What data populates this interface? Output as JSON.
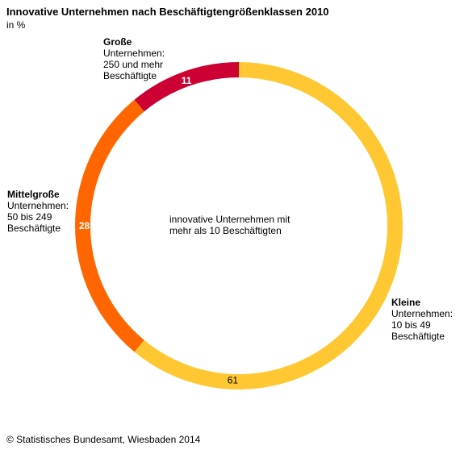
{
  "header": {
    "title": "Innovative Unternehmen nach Beschäftigtengrößenklassen 2010",
    "subtitle": "in %"
  },
  "center_label": {
    "line1": "innovative Unternehmen mit",
    "line2": "mehr als 10 Beschäftigten"
  },
  "labels": {
    "large": {
      "name": "Große",
      "line1": "Unternehmen:",
      "line2": "250 und mehr",
      "line3": "Beschäftigte"
    },
    "medium": {
      "name": "Mittelgroße",
      "line1": "Unternehmen:",
      "line2": "50 bis 249",
      "line3": "Beschäftigte"
    },
    "small": {
      "name": "Kleine",
      "line1": "Unternehmen:",
      "line2": "10 bis 49",
      "line3": "Beschäftigte"
    }
  },
  "footer": {
    "source": "© Statistisches Bundesamt, Wiesbaden 2014"
  },
  "chart_data": {
    "type": "pie",
    "title": "Innovative Unternehmen nach Beschäftigtengrößenklassen 2010",
    "subtitle": "in %",
    "categories": [
      "Kleine Unternehmen: 10 bis 49 Beschäftigte",
      "Mittelgroße Unternehmen: 50 bis 249 Beschäftigte",
      "Große Unternehmen: 250 und mehr Beschäftigte"
    ],
    "values": [
      61,
      28,
      11
    ],
    "value_labels": [
      "61",
      "28",
      "11"
    ],
    "colors": [
      "#ffc832",
      "#ff6600",
      "#cc0033"
    ],
    "value_label_colors": [
      "#000000",
      "#ffffff",
      "#ffffff"
    ],
    "donut": true
  }
}
